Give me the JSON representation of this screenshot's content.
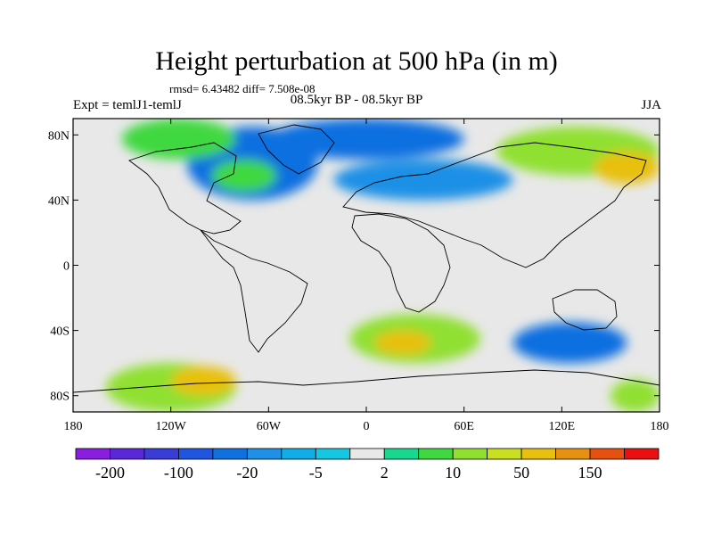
{
  "title": "Height perturbation at 500 hPa (in m)",
  "stats": "rmsd= 6.43482 diff= 7.508e-08",
  "experiment": "Expt = temlJ1-temlJ",
  "period": "08.5kyr BP - 08.5kyr BP",
  "season": "JJA",
  "chart_data": {
    "type": "heatmap",
    "title": "Height perturbation at 500 hPa (in m)",
    "xlabel": "",
    "ylabel": "",
    "xlim": [
      -180,
      180
    ],
    "ylim": [
      -90,
      90
    ],
    "x_ticks": [
      {
        "value": -180,
        "label": "180"
      },
      {
        "value": -120,
        "label": "120W"
      },
      {
        "value": -60,
        "label": "60W"
      },
      {
        "value": 0,
        "label": "0"
      },
      {
        "value": 60,
        "label": "60E"
      },
      {
        "value": 120,
        "label": "120E"
      },
      {
        "value": 180,
        "label": "180"
      }
    ],
    "y_ticks": [
      {
        "value": 80,
        "label": "80N"
      },
      {
        "value": 40,
        "label": "40N"
      },
      {
        "value": 0,
        "label": "0"
      },
      {
        "value": -40,
        "label": "40S"
      },
      {
        "value": -80,
        "label": "80S"
      }
    ],
    "colorbar": {
      "colors": [
        "#8a1ee0",
        "#5a28d8",
        "#3a3cd8",
        "#1f55e0",
        "#1070e0",
        "#1e90e6",
        "#10aee6",
        "#14c8e2",
        "#e8e8e8",
        "#18d890",
        "#40d840",
        "#90e030",
        "#c8e020",
        "#e8c010",
        "#e89010",
        "#e85010",
        "#e81010"
      ],
      "labels": [
        {
          "boundary": 1,
          "text": "-200"
        },
        {
          "boundary": 3,
          "text": "-100"
        },
        {
          "boundary": 5,
          "text": "-20"
        },
        {
          "boundary": 7,
          "text": "-5"
        },
        {
          "boundary": 9,
          "text": "2"
        },
        {
          "boundary": 11,
          "text": "10"
        },
        {
          "boundary": 13,
          "text": "50"
        },
        {
          "boundary": 15,
          "text": "150"
        }
      ]
    },
    "regions": [
      {
        "level": "-20",
        "lon": [
          -110,
          -30
        ],
        "lat": [
          85,
          40
        ],
        "color": "#1070e0"
      },
      {
        "level": "-20",
        "lon": [
          -60,
          60
        ],
        "lat": [
          90,
          65
        ],
        "color": "#1070e0"
      },
      {
        "level": "-5",
        "lon": [
          -20,
          90
        ],
        "lat": [
          65,
          40
        ],
        "color": "#1e90e6"
      },
      {
        "level": "10",
        "lon": [
          -150,
          -80
        ],
        "lat": [
          90,
          65
        ],
        "color": "#40d840"
      },
      {
        "level": "10",
        "lon": [
          -95,
          -55
        ],
        "lat": [
          65,
          45
        ],
        "color": "#40d840"
      },
      {
        "level": "10",
        "lon": [
          80,
          180
        ],
        "lat": [
          85,
          55
        ],
        "color": "#90e030"
      },
      {
        "level": "50",
        "lon": [
          140,
          180
        ],
        "lat": [
          70,
          50
        ],
        "color": "#e8c010"
      },
      {
        "level": "10",
        "lon": [
          -10,
          70
        ],
        "lat": [
          -30,
          -60
        ],
        "color": "#90e030"
      },
      {
        "level": "50",
        "lon": [
          5,
          40
        ],
        "lat": [
          -40,
          -55
        ],
        "color": "#e8c010"
      },
      {
        "level": "10",
        "lon": [
          -160,
          -80
        ],
        "lat": [
          -60,
          -90
        ],
        "color": "#90e030"
      },
      {
        "level": "50",
        "lon": [
          -120,
          -80
        ],
        "lat": [
          -62,
          -80
        ],
        "color": "#e8c010"
      },
      {
        "level": "-20",
        "lon": [
          90,
          160
        ],
        "lat": [
          -35,
          -60
        ],
        "color": "#1070e0"
      },
      {
        "level": "10",
        "lon": [
          150,
          180
        ],
        "lat": [
          -70,
          -90
        ],
        "color": "#90e030"
      }
    ]
  }
}
